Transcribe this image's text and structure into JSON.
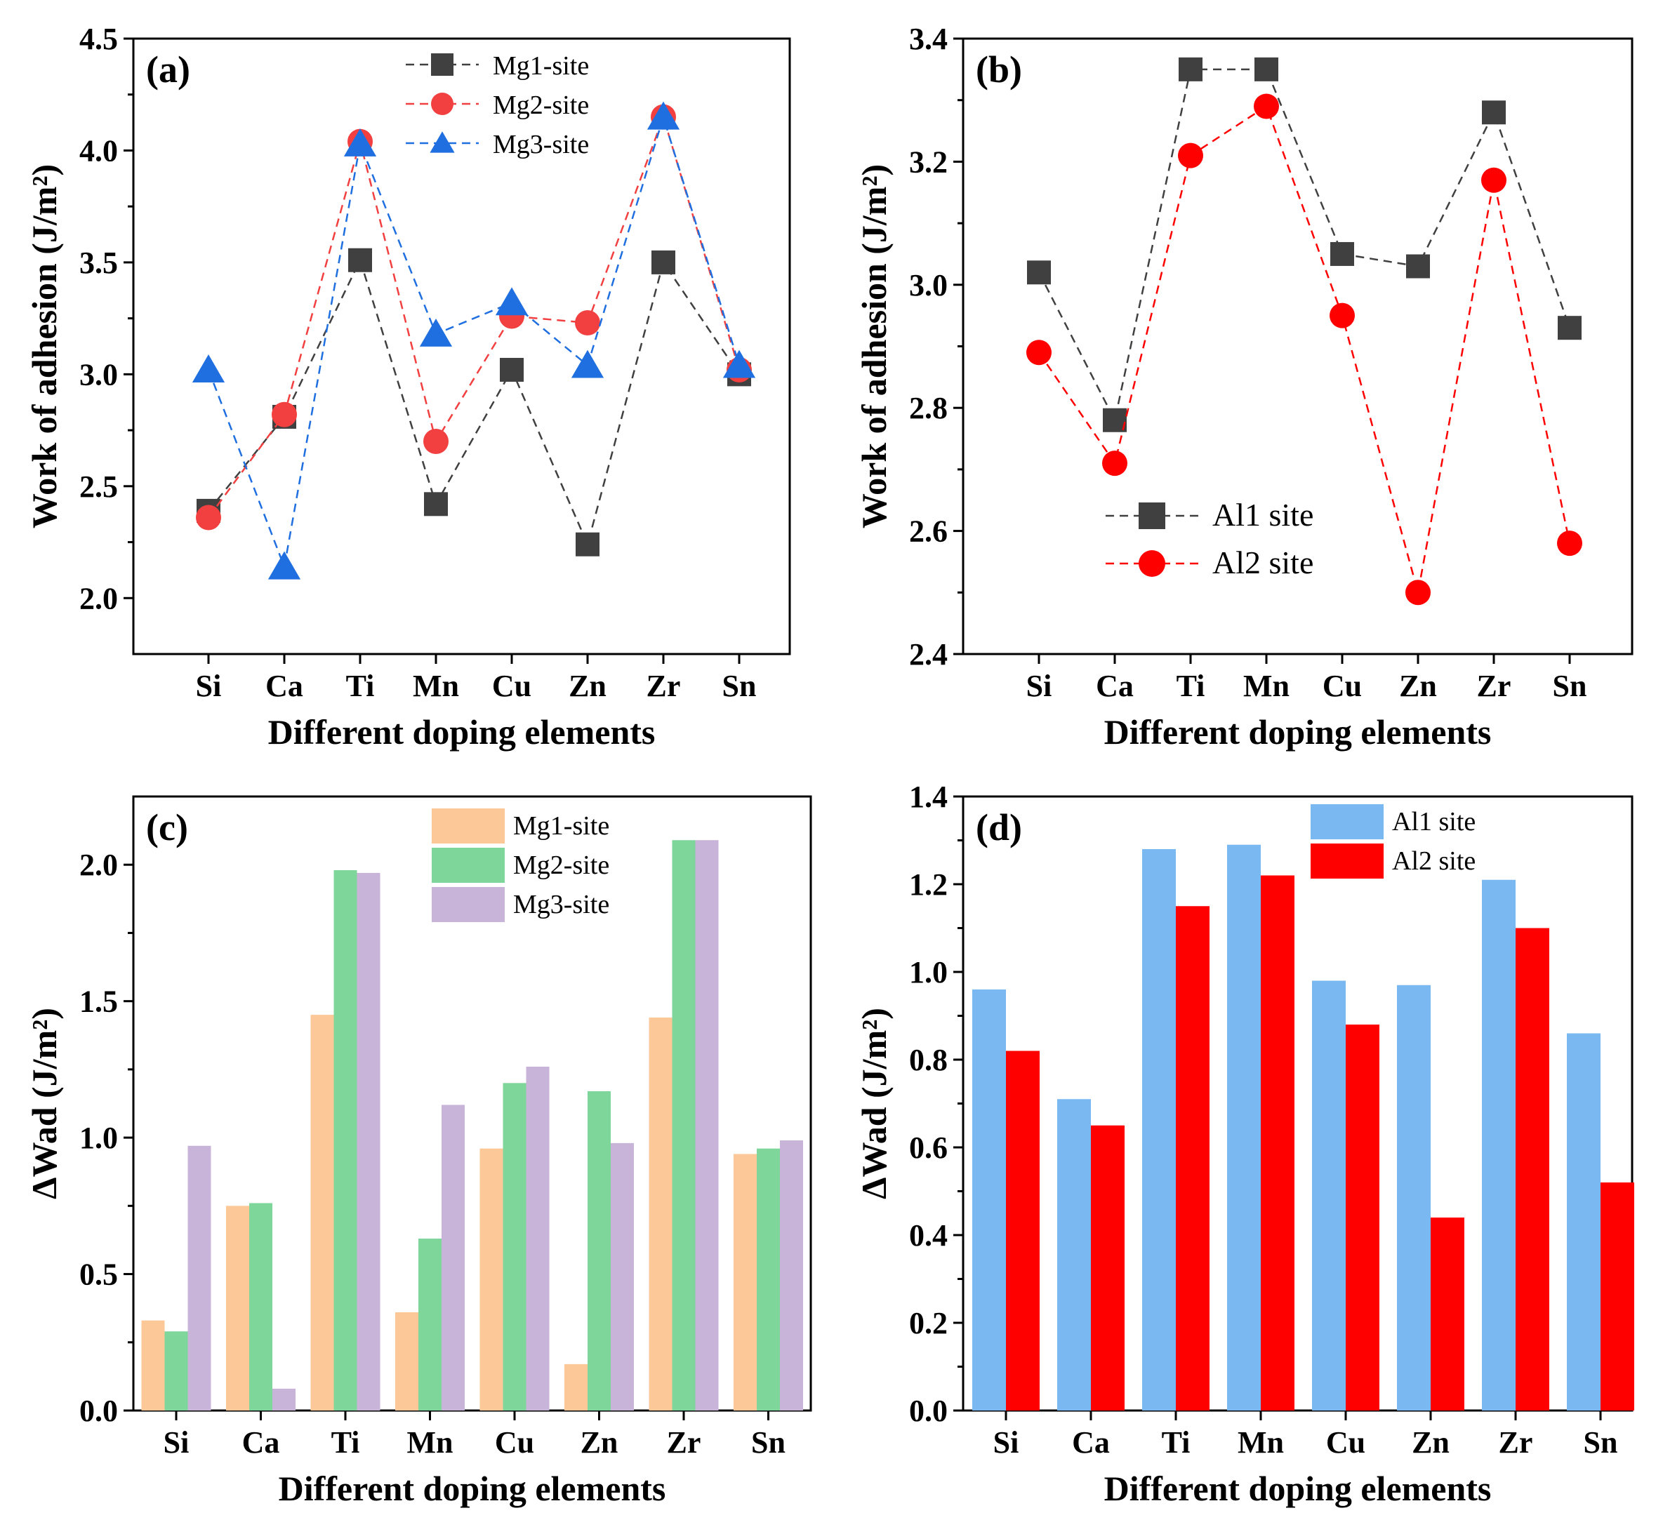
{
  "chart_data": [
    {
      "panel": "(a)",
      "type": "line",
      "categories": [
        "Si",
        "Ca",
        "Ti",
        "Mn",
        "Cu",
        "Zn",
        "Zr",
        "Sn"
      ],
      "series": [
        {
          "name": "Mg1-site",
          "marker": "square",
          "color": "#404040",
          "values": [
            2.39,
            2.81,
            3.51,
            2.42,
            3.02,
            2.24,
            3.5,
            3.0
          ]
        },
        {
          "name": "Mg2-site",
          "marker": "circle",
          "color": "#f24040",
          "values": [
            2.36,
            2.82,
            4.04,
            2.7,
            3.26,
            3.23,
            4.15,
            3.02
          ]
        },
        {
          "name": "Mg3-site",
          "marker": "triangle",
          "color": "#1f6fe0",
          "values": [
            3.02,
            2.14,
            4.03,
            3.18,
            3.32,
            3.04,
            4.15,
            3.04
          ]
        }
      ],
      "xlabel": "Different doping elements",
      "ylabel": "Work of adhesion (J/m²)",
      "ylim": [
        1.75,
        4.5
      ],
      "yticks": [
        2.0,
        2.5,
        3.0,
        3.5,
        4.0,
        4.5
      ],
      "ytick_labels": [
        "2.0",
        "2.5",
        "3.0",
        "3.5",
        "4.0",
        "4.5"
      ],
      "legend": "top-center"
    },
    {
      "panel": "(b)",
      "type": "line",
      "categories": [
        "Si",
        "Ca",
        "Ti",
        "Mn",
        "Cu",
        "Zn",
        "Zr",
        "Sn"
      ],
      "series": [
        {
          "name": "Al1 site",
          "marker": "square",
          "color": "#404040",
          "values": [
            3.02,
            2.78,
            3.35,
            3.35,
            3.05,
            3.03,
            3.28,
            2.93
          ]
        },
        {
          "name": "Al2 site",
          "marker": "circle",
          "color": "#ff0000",
          "values": [
            2.89,
            2.71,
            3.21,
            3.29,
            2.95,
            2.5,
            3.17,
            2.58
          ]
        }
      ],
      "xlabel": "Different doping elements",
      "ylabel": "Work of adhesion (J/m²)",
      "ylim": [
        2.4,
        3.4
      ],
      "yticks": [
        2.4,
        2.6,
        2.8,
        3.0,
        3.2,
        3.4
      ],
      "ytick_labels": [
        "2.4",
        "2.6",
        "2.8",
        "3.0",
        "3.2",
        "3.4"
      ],
      "legend": "bottom-left"
    },
    {
      "panel": "(c)",
      "type": "bar",
      "categories": [
        "Si",
        "Ca",
        "Ti",
        "Mn",
        "Cu",
        "Zn",
        "Zr",
        "Sn"
      ],
      "series": [
        {
          "name": "Mg1-site",
          "color": "#fdc897",
          "values": [
            0.33,
            0.75,
            1.45,
            0.36,
            0.96,
            0.17,
            1.44,
            0.94
          ]
        },
        {
          "name": "Mg2-site",
          "color": "#7fd69b",
          "values": [
            0.29,
            0.76,
            1.98,
            0.63,
            1.2,
            1.17,
            2.09,
            0.96
          ]
        },
        {
          "name": "Mg3-site",
          "color": "#c8b3d9",
          "values": [
            0.97,
            0.08,
            1.97,
            1.12,
            1.26,
            0.98,
            2.09,
            0.99
          ]
        }
      ],
      "xlabel": "Different doping elements",
      "ylabel": "ΔWad (J/m²)",
      "ylim": [
        0,
        2.25
      ],
      "yticks": [
        0.0,
        0.5,
        1.0,
        1.5,
        2.0
      ],
      "ytick_labels": [
        "0.0",
        "0.5",
        "1.0",
        "1.5",
        "2.0"
      ],
      "legend": "top-right"
    },
    {
      "panel": "(d)",
      "type": "bar",
      "categories": [
        "Si",
        "Ca",
        "Ti",
        "Mn",
        "Cu",
        "Zn",
        "Zr",
        "Sn"
      ],
      "series": [
        {
          "name": "Al1 site",
          "color": "#7ab8f2",
          "values": [
            0.96,
            0.71,
            1.28,
            1.29,
            0.98,
            0.97,
            1.21,
            0.86
          ]
        },
        {
          "name": "Al2 site",
          "color": "#ff0000",
          "values": [
            0.82,
            0.65,
            1.15,
            1.22,
            0.88,
            0.44,
            1.1,
            0.52
          ]
        }
      ],
      "xlabel": "Different doping elements",
      "ylabel": "ΔWad (J/m²)",
      "ylim": [
        0,
        1.4
      ],
      "yticks": [
        0.0,
        0.2,
        0.4,
        0.6,
        0.8,
        1.0,
        1.2,
        1.4
      ],
      "ytick_labels": [
        "0.0",
        "0.2",
        "0.4",
        "0.6",
        "0.8",
        "1.0",
        "1.2",
        "1.4"
      ],
      "legend": "top-center"
    }
  ]
}
